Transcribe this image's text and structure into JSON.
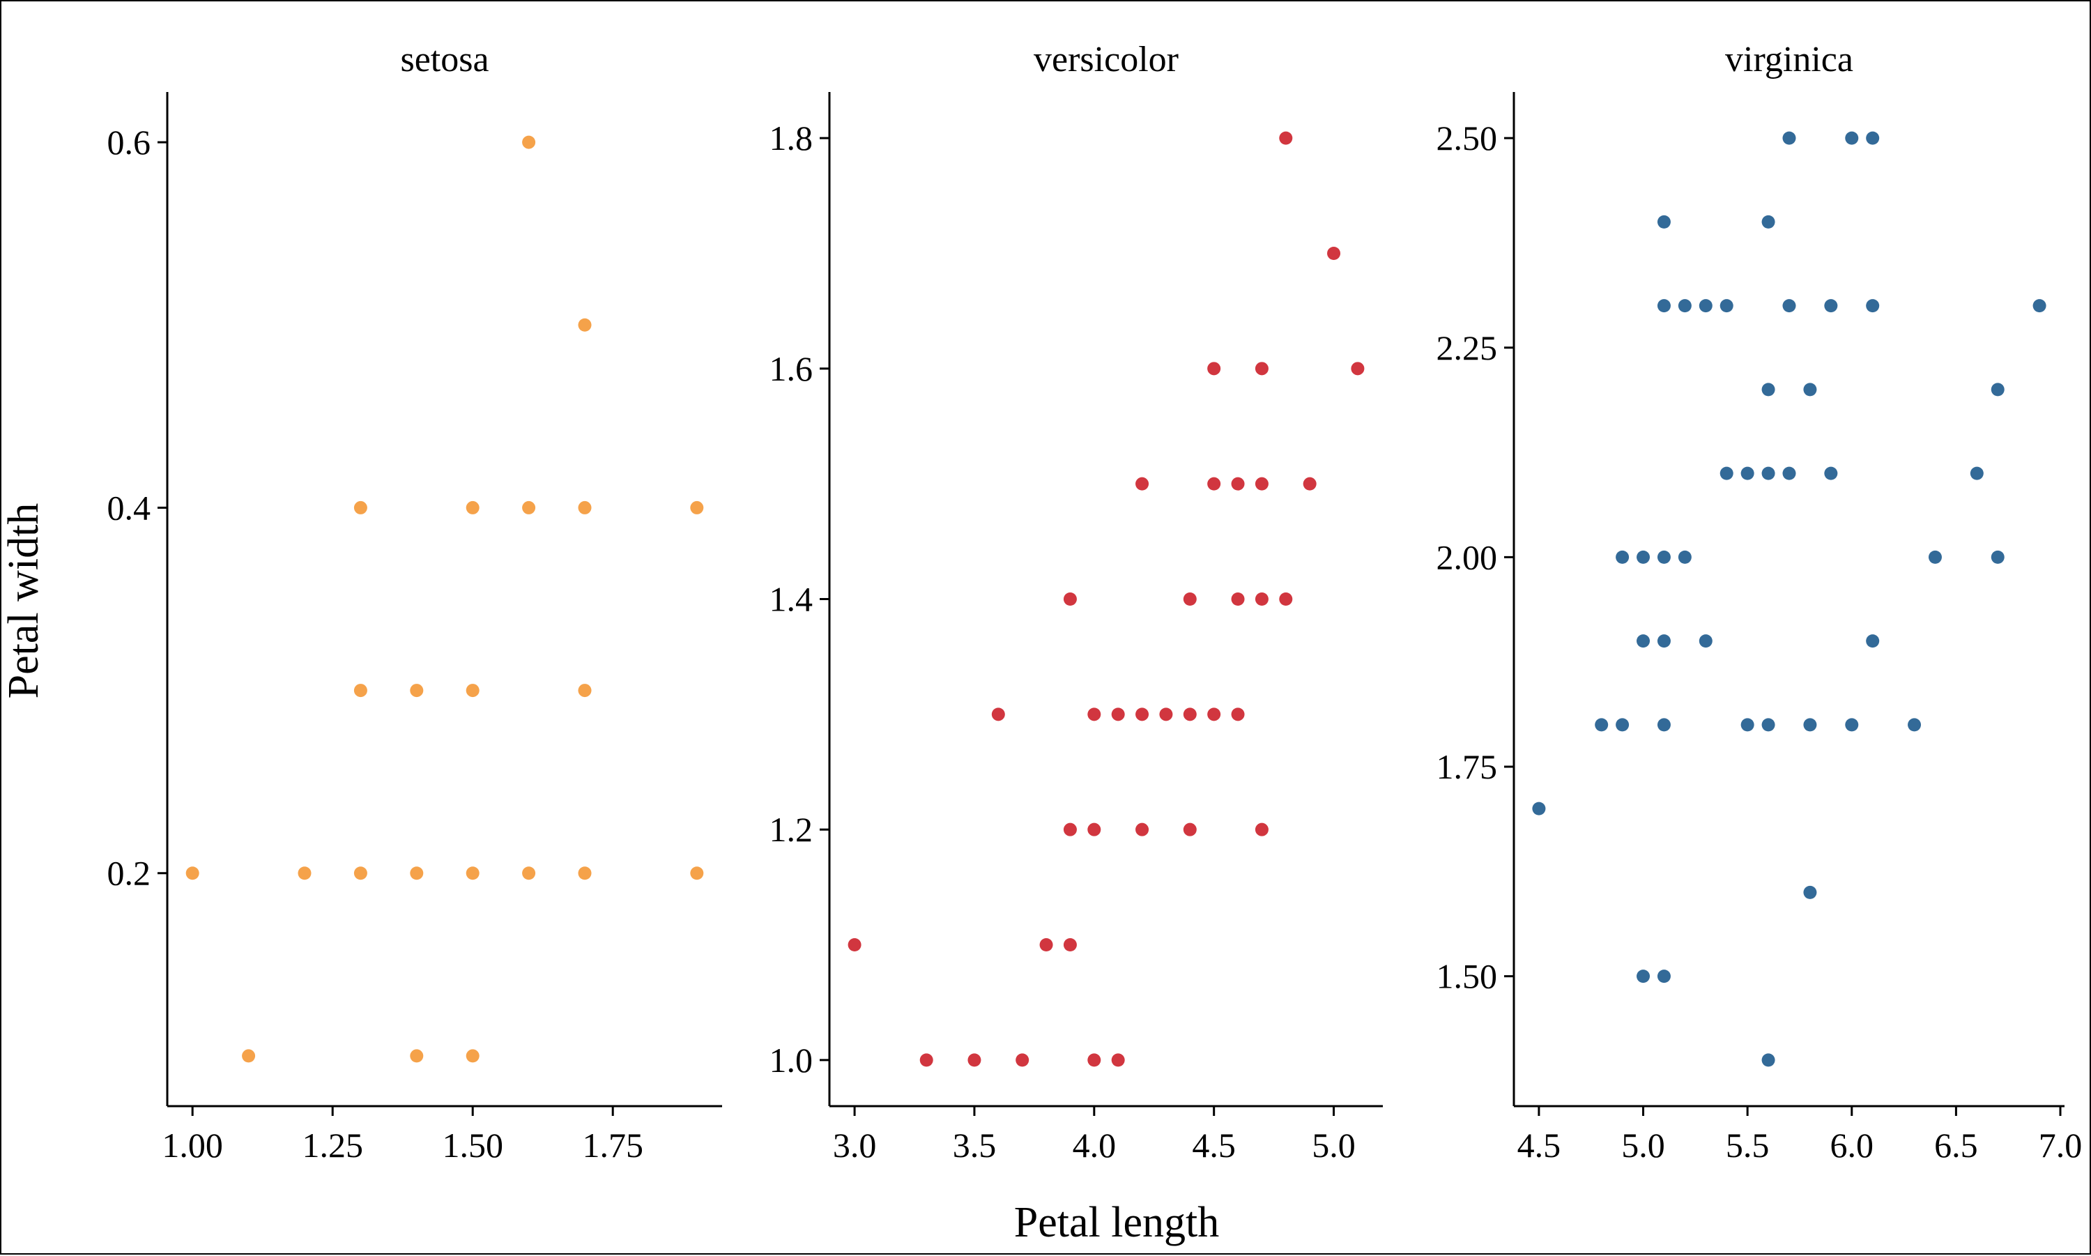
{
  "chart_data": {
    "type": "scatter",
    "xlabel": "Petal length",
    "ylabel": "Petal width",
    "grid": false,
    "legend": "none",
    "panels": [
      {
        "title": "setosa",
        "color": "#F5A24A",
        "xlim": [
          0.955,
          1.945
        ],
        "ylim": [
          0.0725,
          0.6275
        ],
        "xticks": [
          1.0,
          1.25,
          1.5,
          1.75
        ],
        "xtick_labels": [
          "1.00",
          "1.25",
          "1.50",
          "1.75"
        ],
        "yticks": [
          0.2,
          0.4,
          0.6
        ],
        "ytick_labels": [
          "0.2",
          "0.4",
          "0.6"
        ],
        "points": [
          [
            1.6,
            0.6
          ],
          [
            1.7,
            0.5
          ],
          [
            1.3,
            0.4
          ],
          [
            1.5,
            0.4
          ],
          [
            1.6,
            0.4
          ],
          [
            1.7,
            0.4
          ],
          [
            1.9,
            0.4
          ],
          [
            1.3,
            0.3
          ],
          [
            1.4,
            0.3
          ],
          [
            1.5,
            0.3
          ],
          [
            1.7,
            0.3
          ],
          [
            1.0,
            0.2
          ],
          [
            1.2,
            0.2
          ],
          [
            1.3,
            0.2
          ],
          [
            1.4,
            0.2
          ],
          [
            1.5,
            0.2
          ],
          [
            1.6,
            0.2
          ],
          [
            1.7,
            0.2
          ],
          [
            1.9,
            0.2
          ],
          [
            1.1,
            0.1
          ],
          [
            1.4,
            0.1
          ],
          [
            1.5,
            0.1
          ]
        ]
      },
      {
        "title": "versicolor",
        "color": "#D1363F",
        "xlim": [
          2.895,
          5.205
        ],
        "ylim": [
          0.96,
          1.84
        ],
        "xticks": [
          3.0,
          3.5,
          4.0,
          4.5,
          5.0
        ],
        "xtick_labels": [
          "3.0",
          "3.5",
          "4.0",
          "4.5",
          "5.0"
        ],
        "yticks": [
          1.0,
          1.2,
          1.4,
          1.6,
          1.8
        ],
        "ytick_labels": [
          "1.0",
          "1.2",
          "1.4",
          "1.6",
          "1.8"
        ],
        "points": [
          [
            4.8,
            1.8
          ],
          [
            5.0,
            1.7
          ],
          [
            4.5,
            1.6
          ],
          [
            4.7,
            1.6
          ],
          [
            5.1,
            1.6
          ],
          [
            4.2,
            1.5
          ],
          [
            4.5,
            1.5
          ],
          [
            4.6,
            1.5
          ],
          [
            4.7,
            1.5
          ],
          [
            4.9,
            1.5
          ],
          [
            3.9,
            1.4
          ],
          [
            4.4,
            1.4
          ],
          [
            4.6,
            1.4
          ],
          [
            4.7,
            1.4
          ],
          [
            4.8,
            1.4
          ],
          [
            3.6,
            1.3
          ],
          [
            4.0,
            1.3
          ],
          [
            4.1,
            1.3
          ],
          [
            4.2,
            1.3
          ],
          [
            4.3,
            1.3
          ],
          [
            4.4,
            1.3
          ],
          [
            4.5,
            1.3
          ],
          [
            4.6,
            1.3
          ],
          [
            3.9,
            1.2
          ],
          [
            4.0,
            1.2
          ],
          [
            4.2,
            1.2
          ],
          [
            4.4,
            1.2
          ],
          [
            4.7,
            1.2
          ],
          [
            3.0,
            1.1
          ],
          [
            3.8,
            1.1
          ],
          [
            3.9,
            1.1
          ],
          [
            3.3,
            1.0
          ],
          [
            3.5,
            1.0
          ],
          [
            3.7,
            1.0
          ],
          [
            4.0,
            1.0
          ],
          [
            4.1,
            1.0
          ]
        ]
      },
      {
        "title": "virginica",
        "color": "#336A98",
        "xlim": [
          4.38,
          7.02
        ],
        "ylim": [
          1.345,
          2.555
        ],
        "xticks": [
          4.5,
          5.0,
          5.5,
          6.0,
          6.5,
          7.0
        ],
        "xtick_labels": [
          "4.5",
          "5.0",
          "5.5",
          "6.0",
          "6.5",
          "7.0"
        ],
        "yticks": [
          1.5,
          1.75,
          2.0,
          2.25,
          2.5
        ],
        "ytick_labels": [
          "1.50",
          "1.75",
          "2.00",
          "2.25",
          "2.50"
        ],
        "points": [
          [
            5.7,
            2.5
          ],
          [
            6.0,
            2.5
          ],
          [
            6.1,
            2.5
          ],
          [
            5.1,
            2.4
          ],
          [
            5.6,
            2.4
          ],
          [
            5.1,
            2.3
          ],
          [
            5.2,
            2.3
          ],
          [
            5.3,
            2.3
          ],
          [
            5.4,
            2.3
          ],
          [
            5.7,
            2.3
          ],
          [
            5.9,
            2.3
          ],
          [
            6.1,
            2.3
          ],
          [
            6.9,
            2.3
          ],
          [
            5.6,
            2.2
          ],
          [
            5.8,
            2.2
          ],
          [
            6.7,
            2.2
          ],
          [
            5.4,
            2.1
          ],
          [
            5.5,
            2.1
          ],
          [
            5.6,
            2.1
          ],
          [
            5.7,
            2.1
          ],
          [
            5.9,
            2.1
          ],
          [
            6.6,
            2.1
          ],
          [
            4.9,
            2.0
          ],
          [
            5.0,
            2.0
          ],
          [
            5.1,
            2.0
          ],
          [
            5.2,
            2.0
          ],
          [
            6.4,
            2.0
          ],
          [
            6.7,
            2.0
          ],
          [
            5.0,
            1.9
          ],
          [
            5.1,
            1.9
          ],
          [
            5.3,
            1.9
          ],
          [
            6.1,
            1.9
          ],
          [
            4.8,
            1.8
          ],
          [
            4.9,
            1.8
          ],
          [
            5.1,
            1.8
          ],
          [
            5.5,
            1.8
          ],
          [
            5.6,
            1.8
          ],
          [
            5.8,
            1.8
          ],
          [
            6.0,
            1.8
          ],
          [
            6.3,
            1.8
          ],
          [
            4.5,
            1.7
          ],
          [
            5.8,
            1.6
          ],
          [
            5.0,
            1.5
          ],
          [
            5.1,
            1.5
          ],
          [
            5.6,
            1.4
          ]
        ]
      }
    ]
  }
}
